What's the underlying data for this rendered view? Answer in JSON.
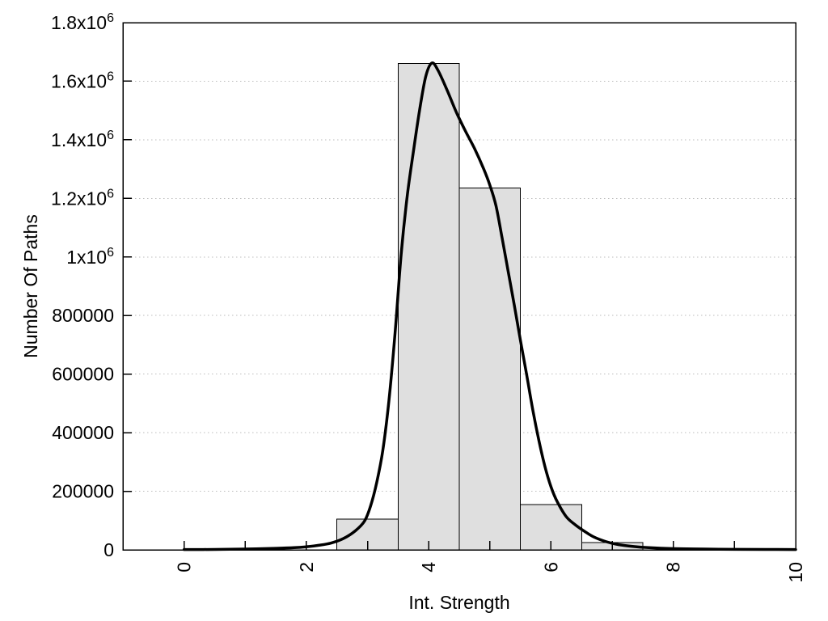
{
  "chart_data": {
    "type": "bar",
    "subtype": "histogram-with-fit-curve",
    "title": "",
    "xlabel": "Int. Strength",
    "ylabel": "Number Of Paths",
    "xlim": [
      -1,
      10
    ],
    "ylim": [
      0,
      1800000
    ],
    "grid": "horizontal-dotted",
    "legend": "none",
    "bar_width": 1,
    "bars": {
      "centers": [
        3,
        4,
        5,
        6,
        7
      ],
      "values": [
        105000,
        1660000,
        1235000,
        155000,
        25000
      ]
    },
    "x_ticks": [
      {
        "v": 0,
        "label": "0"
      },
      {
        "v": 1,
        "label": ""
      },
      {
        "v": 2,
        "label": "2"
      },
      {
        "v": 3,
        "label": ""
      },
      {
        "v": 4,
        "label": "4"
      },
      {
        "v": 5,
        "label": ""
      },
      {
        "v": 6,
        "label": "6"
      },
      {
        "v": 7,
        "label": ""
      },
      {
        "v": 8,
        "label": "8"
      },
      {
        "v": 9,
        "label": ""
      },
      {
        "v": 10,
        "label": "10"
      }
    ],
    "y_ticks": [
      {
        "v": 0,
        "m": "0",
        "sup": ""
      },
      {
        "v": 200000,
        "m": "200000",
        "sup": ""
      },
      {
        "v": 400000,
        "m": "400000",
        "sup": ""
      },
      {
        "v": 600000,
        "m": "600000",
        "sup": ""
      },
      {
        "v": 800000,
        "m": "800000",
        "sup": ""
      },
      {
        "v": 1000000,
        "m": "1x10",
        "sup": "6"
      },
      {
        "v": 1200000,
        "m": "1.2x10",
        "sup": "6"
      },
      {
        "v": 1400000,
        "m": "1.4x10",
        "sup": "6"
      },
      {
        "v": 1600000,
        "m": "1.6x10",
        "sup": "6"
      },
      {
        "v": 1800000,
        "m": "1.8x10",
        "sup": "6"
      }
    ],
    "fit_curve": {
      "x": [
        0,
        0.5,
        1,
        1.5,
        1.8,
        2.0,
        2.2,
        2.4,
        2.6,
        2.8,
        2.95,
        3.05,
        3.15,
        3.25,
        3.35,
        3.45,
        3.55,
        3.65,
        3.75,
        3.85,
        3.95,
        4.05,
        4.15,
        4.3,
        4.45,
        4.6,
        4.75,
        4.9,
        5.0,
        5.1,
        5.2,
        5.3,
        5.4,
        5.5,
        5.6,
        5.7,
        5.8,
        5.9,
        6.0,
        6.1,
        6.25,
        6.4,
        6.55,
        6.7,
        6.9,
        7.1,
        7.35,
        7.6,
        8.0,
        8.5,
        9.0,
        9.5,
        10
      ],
      "y": [
        900,
        1400,
        2600,
        5200,
        7500,
        10500,
        15500,
        23000,
        38000,
        65000,
        98000,
        150000,
        230000,
        340000,
        510000,
        740000,
        1010000,
        1210000,
        1360000,
        1500000,
        1615000,
        1662000,
        1638000,
        1570000,
        1495000,
        1430000,
        1370000,
        1300000,
        1245000,
        1175000,
        1065000,
        950000,
        835000,
        715000,
        600000,
        480000,
        375000,
        285000,
        215000,
        165000,
        113000,
        85000,
        63000,
        44000,
        28000,
        18000,
        11500,
        7500,
        4200,
        2600,
        1800,
        1400,
        1200
      ]
    },
    "colors": {
      "bar_fill": "#dfdfdf",
      "bar_border": "#000000",
      "curve": "#000000",
      "grid": "#bdbdbd",
      "axis": "#000000",
      "background": "#ffffff"
    }
  }
}
